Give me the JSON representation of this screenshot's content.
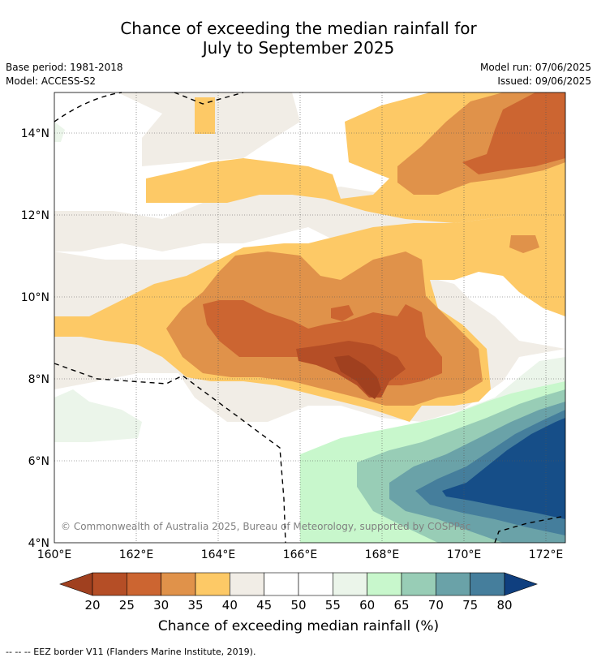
{
  "title": {
    "line1": "Chance of exceeding the median rainfall for",
    "line2": "July to September 2025"
  },
  "meta": {
    "base_period": "Base period: 1981-2018",
    "model": "Model: ACCESS-S2",
    "model_run": "Model run: 07/06/2025",
    "issued": "Issued: 09/06/2025"
  },
  "map": {
    "x_ticks": [
      "160°E",
      "162°E",
      "164°E",
      "166°E",
      "168°E",
      "170°E",
      "172°E"
    ],
    "y_ticks": [
      "14°N",
      "12°N",
      "10°N",
      "8°N",
      "6°N",
      "4°N"
    ],
    "copyright": "© Commonwealth of Australia 2025, Bureau of Meteorology, supported by COSPPac"
  },
  "colorbar": {
    "ticks": [
      "20",
      "25",
      "30",
      "35",
      "40",
      "45",
      "50",
      "55",
      "60",
      "65",
      "70",
      "75",
      "80"
    ],
    "colors": [
      "#a0401f",
      "#b54e26",
      "#cc6531",
      "#e0924a",
      "#fdc966",
      "#f1ede6",
      "#ffffff",
      "#ffffff",
      "#ebf5ea",
      "#c8f7cc",
      "#98cdb6",
      "#6aa2a8",
      "#457e9c",
      "#164e88",
      "#0f3f7f"
    ],
    "label": "Chance of exceeding median rainfall (%)"
  },
  "footer": {
    "legend": "--  --  -- EEZ border V11 (Flanders Marine Institute, 2019)."
  }
}
